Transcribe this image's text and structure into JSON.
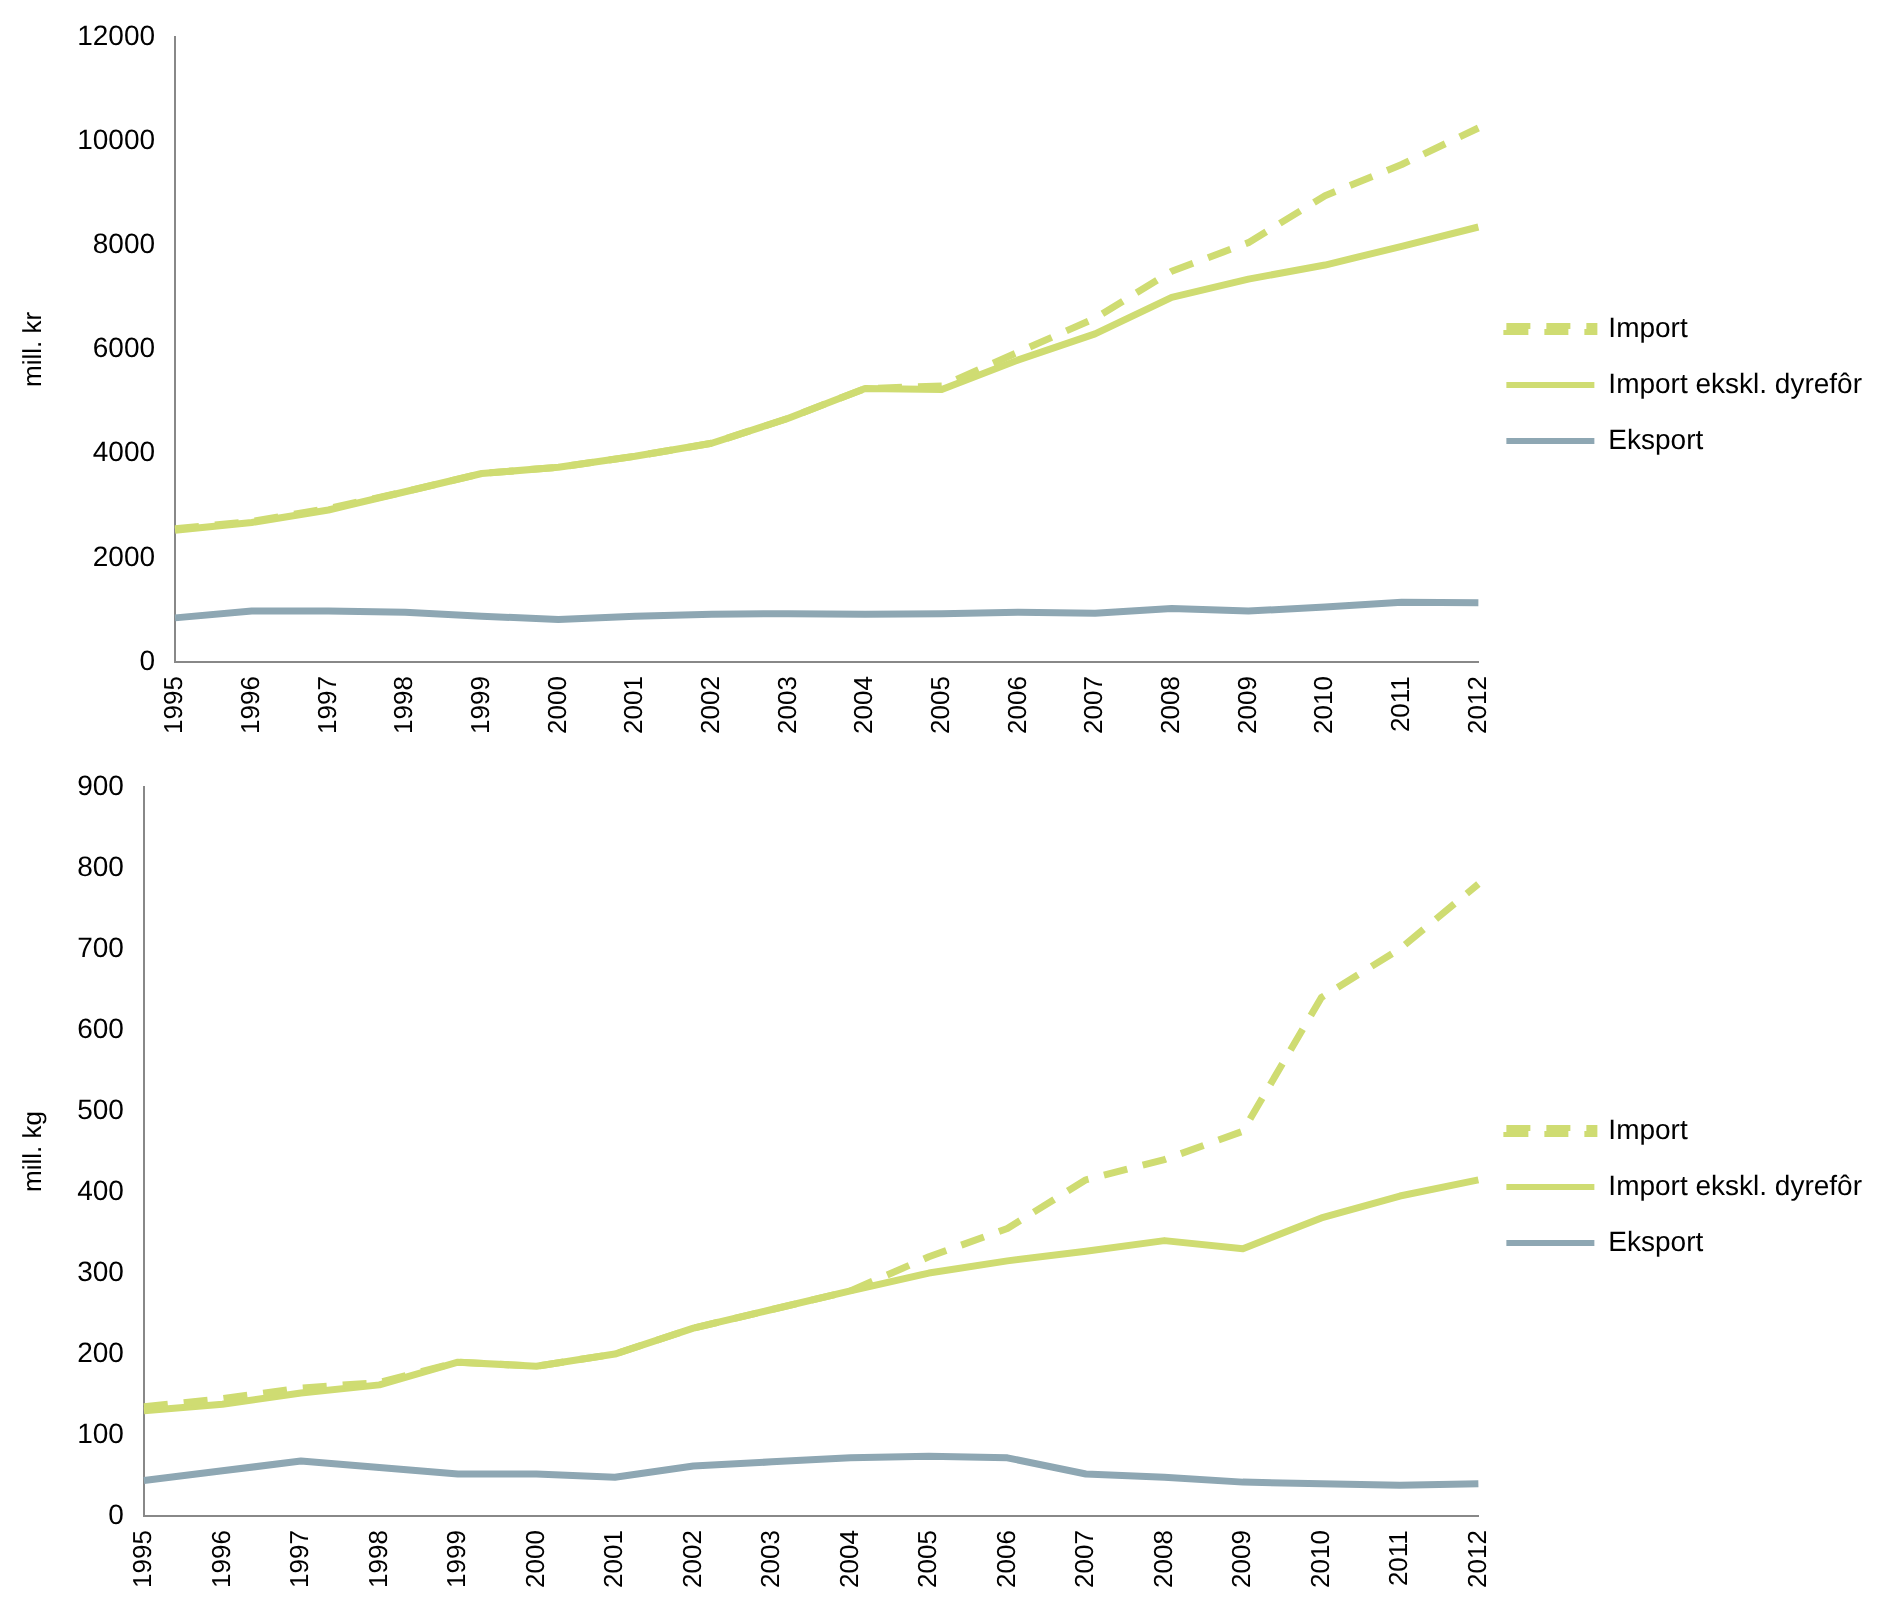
{
  "chart_data": [
    {
      "type": "line",
      "ylabel": "mill. kr",
      "categories": [
        "1995",
        "1996",
        "1997",
        "1998",
        "1999",
        "2000",
        "2001",
        "2002",
        "2003",
        "2004",
        "2005",
        "2006",
        "2007",
        "2008",
        "2009",
        "2010",
        "2011",
        "2012"
      ],
      "ylim": [
        0,
        12000
      ],
      "yticks": [
        0,
        2000,
        4000,
        6000,
        8000,
        10000,
        12000
      ],
      "grid": false,
      "legend": "right",
      "marker": "none",
      "series": [
        {
          "name": "Import",
          "color": "#cfdc72",
          "line_style": "dashed",
          "values": [
            2560,
            2700,
            2950,
            3270,
            3620,
            3740,
            3950,
            4200,
            4680,
            5250,
            5300,
            5950,
            6600,
            7500,
            8050,
            8950,
            9550,
            10250
          ]
        },
        {
          "name": "Import ekskl. dyrefôr",
          "color": "#cfdc72",
          "line_style": "solid",
          "values": [
            2530,
            2680,
            2920,
            3270,
            3620,
            3740,
            3950,
            4200,
            4680,
            5250,
            5230,
            5800,
            6300,
            7000,
            7350,
            7620,
            7980,
            8350
          ]
        },
        {
          "name": "Eksport",
          "color": "#8ea7b3",
          "line_style": "solid",
          "values": [
            850,
            980,
            980,
            960,
            880,
            820,
            880,
            920,
            930,
            920,
            930,
            960,
            940,
            1030,
            980,
            1060,
            1150,
            1140
          ]
        }
      ]
    },
    {
      "type": "line",
      "ylabel": "mill. kg",
      "categories": [
        "1995",
        "1996",
        "1997",
        "1998",
        "1999",
        "2000",
        "2001",
        "2002",
        "2003",
        "2004",
        "2005",
        "2006",
        "2007",
        "2008",
        "2009",
        "2010",
        "2011",
        "2012"
      ],
      "ylim": [
        0,
        900
      ],
      "yticks": [
        0,
        100,
        200,
        300,
        400,
        500,
        600,
        700,
        800,
        900
      ],
      "grid": false,
      "legend": "right",
      "marker": "none",
      "series": [
        {
          "name": "Import",
          "color": "#cfdc72",
          "line_style": "dashed",
          "values": [
            135,
            145,
            158,
            165,
            190,
            185,
            200,
            232,
            255,
            278,
            320,
            355,
            415,
            440,
            475,
            640,
            700,
            780
          ]
        },
        {
          "name": "Import ekskl. dyrefôr",
          "color": "#cfdc72",
          "line_style": "solid",
          "values": [
            130,
            138,
            152,
            162,
            190,
            185,
            200,
            232,
            255,
            278,
            300,
            315,
            327,
            340,
            330,
            368,
            395,
            415
          ]
        },
        {
          "name": "Eksport",
          "color": "#8ea7b3",
          "line_style": "solid",
          "values": [
            44,
            56,
            68,
            60,
            52,
            52,
            48,
            62,
            67,
            72,
            74,
            72,
            52,
            48,
            42,
            40,
            38,
            40
          ]
        }
      ]
    }
  ]
}
